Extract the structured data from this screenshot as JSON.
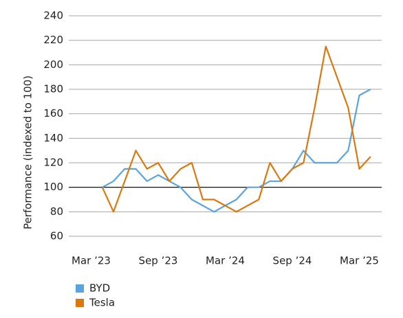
{
  "chart_data": {
    "type": "line",
    "y_label": "Performance (indexed to 100)",
    "x": [
      "2023-04",
      "2023-05",
      "2023-06",
      "2023-07",
      "2023-08",
      "2023-09",
      "2023-10",
      "2023-11",
      "2023-12",
      "2024-01",
      "2024-02",
      "2024-03",
      "2024-04",
      "2024-05",
      "2024-06",
      "2024-07",
      "2024-08",
      "2024-09",
      "2024-10",
      "2024-11",
      "2024-12",
      "2025-01",
      "2025-02",
      "2025-03",
      "2025-04"
    ],
    "series": [
      {
        "name": "BYD",
        "color": "#5ba3dc",
        "values": [
          100,
          105,
          115,
          115,
          105,
          110,
          105,
          100,
          90,
          85,
          80,
          85,
          90,
          100,
          100,
          105,
          105,
          115,
          130,
          120,
          120,
          120,
          130,
          175,
          180
        ]
      },
      {
        "name": "Tesla",
        "color": "#d9780f",
        "values": [
          100,
          80,
          105,
          130,
          115,
          120,
          105,
          115,
          120,
          90,
          90,
          85,
          80,
          85,
          90,
          120,
          105,
          115,
          120,
          165,
          215,
          190,
          165,
          115,
          125
        ]
      }
    ],
    "xlim": [
      "2023-01",
      "2025-05"
    ],
    "xticks": [
      {
        "value": "2023-03",
        "label": "Mar ’23"
      },
      {
        "value": "2023-09",
        "label": "Sep ’23"
      },
      {
        "value": "2024-03",
        "label": "Mar ’24"
      },
      {
        "value": "2024-09",
        "label": "Sep ’24"
      },
      {
        "value": "2025-03",
        "label": "Mar ’25"
      }
    ],
    "ylim": [
      60,
      240
    ],
    "yticks": [
      60,
      80,
      100,
      120,
      140,
      160,
      180,
      200,
      220,
      240
    ],
    "baseline": 100,
    "grid": true,
    "legend": "bottom-left"
  }
}
